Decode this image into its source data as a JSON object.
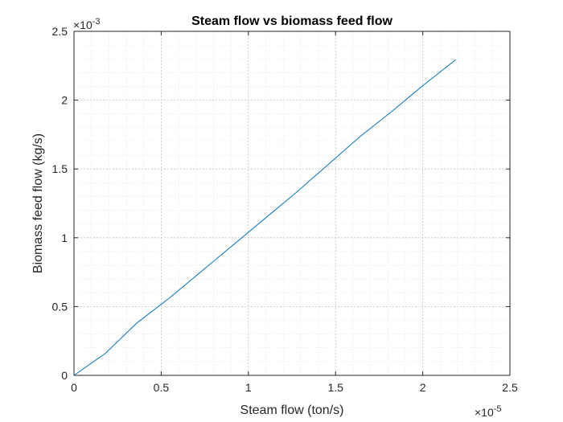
{
  "chart_data": {
    "type": "line",
    "title": "Steam flow vs biomass feed flow",
    "xlabel": "Steam flow (ton/s)",
    "ylabel": "Biomass feed flow (kg/s)",
    "x_exponent_base": "×10",
    "x_exponent_power": "-5",
    "y_exponent_base": "×10",
    "y_exponent_power": "-3",
    "xlim": [
      0,
      2.5
    ],
    "ylim": [
      0,
      2.5
    ],
    "x_ticks": [
      0,
      0.5,
      1,
      1.5,
      2,
      2.5
    ],
    "x_tick_labels": [
      "0",
      "0.5",
      "1",
      "1.5",
      "2",
      "2.5"
    ],
    "y_ticks": [
      0,
      0.5,
      1,
      1.5,
      2,
      2.5
    ],
    "y_tick_labels": [
      "0",
      "0.5",
      "1",
      "1.5",
      "2",
      "2.5"
    ],
    "grid": true,
    "minor_grid": true,
    "line_color": "#0072BD",
    "series": [
      {
        "x": [
          0,
          0.18,
          0.36,
          0.55,
          0.73,
          0.91,
          1.09,
          1.28,
          1.46,
          1.64,
          1.82,
          2.0,
          2.19
        ],
        "y": [
          0,
          0.16,
          0.38,
          0.565,
          0.755,
          0.945,
          1.135,
          1.335,
          1.535,
          1.735,
          1.915,
          2.105,
          2.295
        ]
      }
    ]
  }
}
